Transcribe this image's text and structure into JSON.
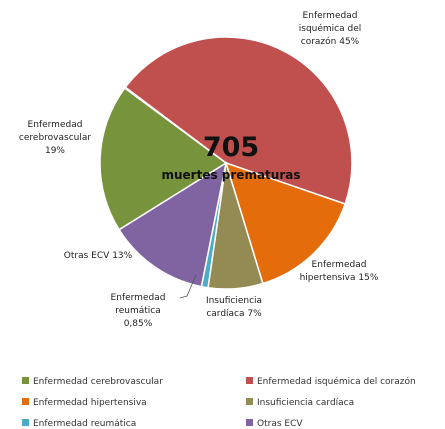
{
  "chart_data": {
    "type": "pie",
    "center_text": "705",
    "center_subtitle": "muertes prematuras",
    "categories": [
      "Enfermedad isquémica del corazón",
      "Enfermedad hipertensiva",
      "Insuficiencia cardíaca",
      "Enfermedad reumática",
      "Otras ECV",
      "Enfermedad cerebrovascular"
    ],
    "values": [
      45,
      15,
      7,
      0.85,
      13,
      19
    ],
    "value_labels": [
      "45%",
      "15%",
      "7%",
      "0,85%",
      "13%",
      "19%"
    ],
    "colors": [
      "#c0504d",
      "#e46c0a",
      "#948a54",
      "#4bacc6",
      "#8064a2",
      "#77933c"
    ]
  }
}
